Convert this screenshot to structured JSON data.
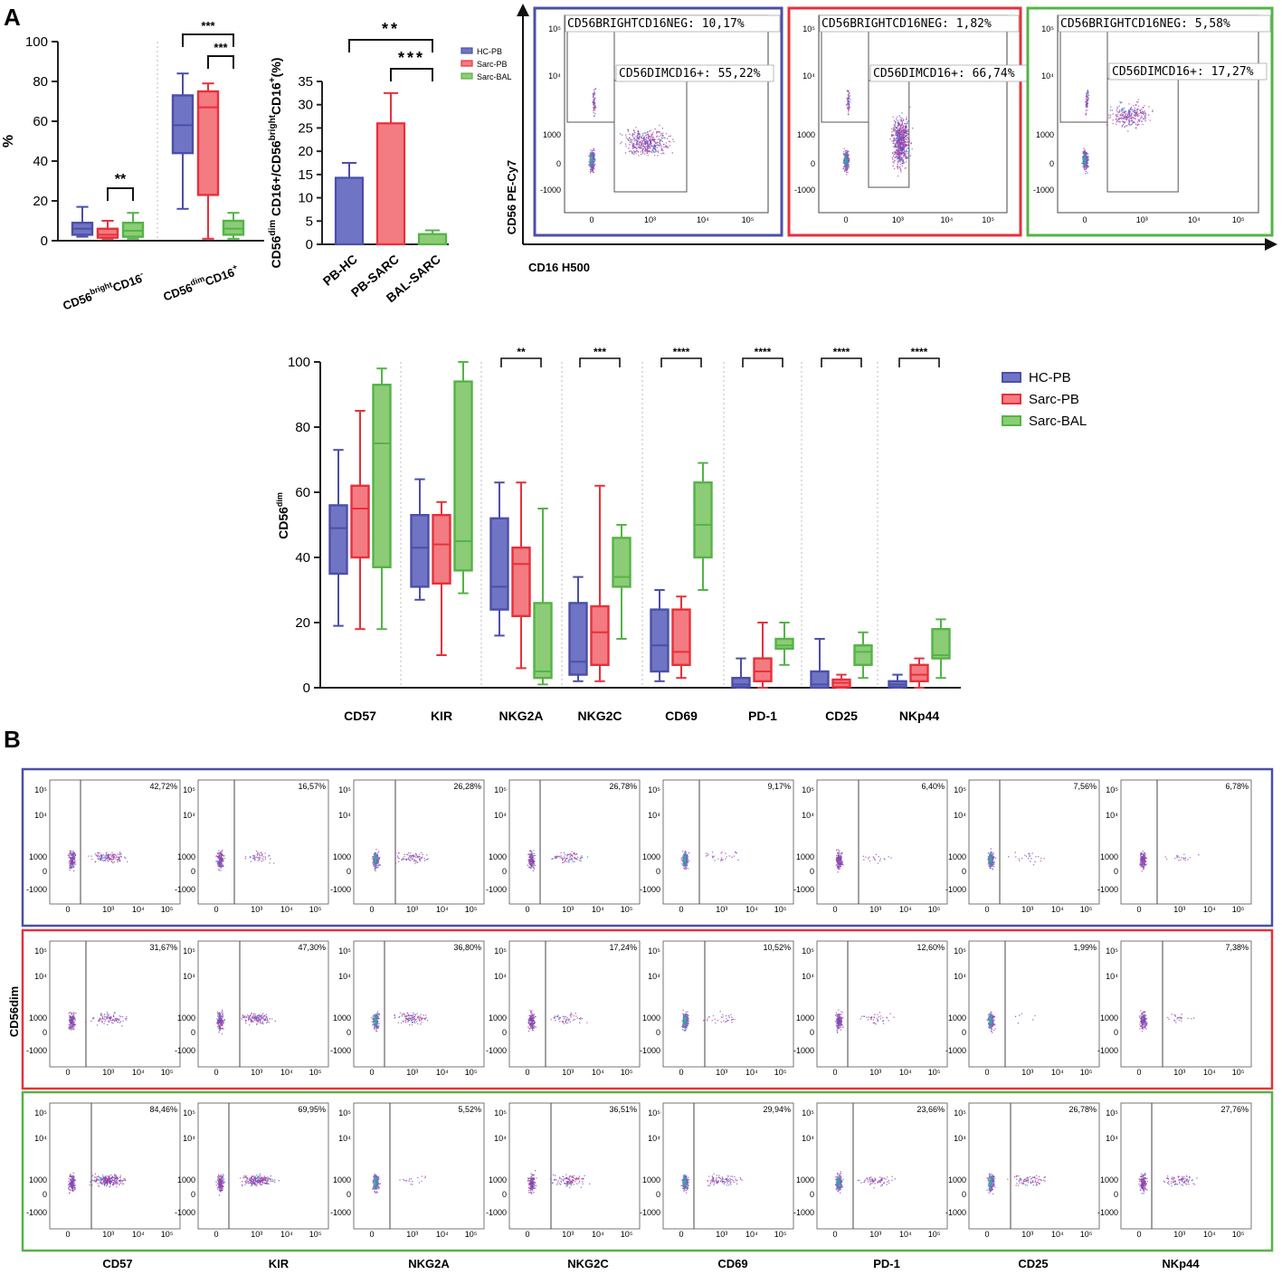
{
  "panels": {
    "a": "A",
    "b": "B"
  },
  "colors": {
    "hc": "#4b4fa8",
    "sarc_pb": "#e8303a",
    "sarc_bal": "#54b447",
    "hc_fill": "#6f74c4",
    "pb_fill": "#f37b82",
    "bal_fill": "#8ccc76"
  },
  "chart_data": [
    {
      "type": "box",
      "id": "subsets",
      "ylabel": "%",
      "ylim": [
        0,
        100
      ],
      "yticks": [
        0,
        20,
        40,
        60,
        80,
        100
      ],
      "categories": [
        "CD56brightCD16-",
        "CD56dimCD16+"
      ],
      "category_labels": [
        {
          "base": "CD56",
          "sup": "bright",
          "rest": "CD16",
          "sup2": "-"
        },
        {
          "base": "CD56",
          "sup": "dim",
          "rest": "CD16",
          "sup2": "+"
        }
      ],
      "series": [
        {
          "name": "HC-PB",
          "boxes": [
            {
              "min": 2,
              "q1": 3,
              "median": 6,
              "q3": 9,
              "max": 17
            },
            {
              "min": 16,
              "q1": 44,
              "median": 58,
              "q3": 73,
              "max": 84
            }
          ]
        },
        {
          "name": "Sarc-PB",
          "boxes": [
            {
              "min": 1,
              "q1": 1.5,
              "median": 3,
              "q3": 6,
              "max": 10
            },
            {
              "min": 1,
              "q1": 23,
              "median": 67,
              "q3": 75,
              "max": 79
            }
          ]
        },
        {
          "name": "Sarc-BAL",
          "boxes": [
            {
              "min": 1,
              "q1": 2,
              "median": 5,
              "q3": 9,
              "max": 14
            },
            {
              "min": 1,
              "q1": 3,
              "median": 6,
              "q3": 10,
              "max": 14
            }
          ]
        }
      ],
      "significance": [
        {
          "category": 0,
          "from": 1,
          "to": 2,
          "label": "**"
        },
        {
          "category": 1,
          "from": 0,
          "to": 2,
          "label": "***"
        },
        {
          "category": 1,
          "from": 1,
          "to": 2,
          "label": "***"
        }
      ]
    },
    {
      "type": "bar",
      "id": "ratio",
      "ylabel_parts": [
        "CD56",
        "dim",
        " CD16+/CD56",
        "bright",
        "CD16",
        "+",
        "(%)"
      ],
      "ylim": [
        0,
        35
      ],
      "yticks": [
        0,
        5,
        10,
        15,
        20,
        25,
        30,
        35
      ],
      "categories": [
        "PB-HC",
        "PB-SARC",
        "BAL-SARC"
      ],
      "values": [
        14.3,
        26,
        2.2
      ],
      "errors": [
        3.2,
        6.5,
        0.8
      ],
      "legend": [
        "HC-PB",
        "Sarc-PB",
        "Sarc-BAL"
      ],
      "significance": [
        {
          "from": 0,
          "to": 2,
          "label": "**"
        },
        {
          "from": 1,
          "to": 2,
          "label": "***"
        }
      ]
    },
    {
      "type": "box",
      "id": "markers",
      "ylabel_parts": [
        "CD56",
        "dim"
      ],
      "ylim": [
        0,
        100
      ],
      "yticks": [
        0,
        20,
        40,
        60,
        80,
        100
      ],
      "categories": [
        "CD57",
        "KIR",
        "NKG2A",
        "NKG2C",
        "CD69",
        "PD-1",
        "CD25",
        "NKp44"
      ],
      "legend": [
        "HC-PB",
        "Sarc-PB",
        "Sarc-BAL"
      ],
      "series": [
        {
          "name": "HC-PB",
          "boxes": [
            {
              "min": 19,
              "q1": 35,
              "median": 49,
              "q3": 56,
              "max": 73
            },
            {
              "min": 27,
              "q1": 31,
              "median": 43,
              "q3": 53,
              "max": 64
            },
            {
              "min": 16,
              "q1": 24,
              "median": 31,
              "q3": 52,
              "max": 63
            },
            {
              "min": 2,
              "q1": 4,
              "median": 8,
              "q3": 26,
              "max": 34
            },
            {
              "min": 2,
              "q1": 5,
              "median": 13,
              "q3": 24,
              "max": 30
            },
            {
              "min": 0,
              "q1": 0.2,
              "median": 1,
              "q3": 3,
              "max": 9
            },
            {
              "min": 0,
              "q1": 0,
              "median": 1,
              "q3": 5,
              "max": 15
            },
            {
              "min": 0,
              "q1": 0.2,
              "median": 1,
              "q3": 2,
              "max": 4
            }
          ]
        },
        {
          "name": "Sarc-PB",
          "boxes": [
            {
              "min": 18,
              "q1": 40,
              "median": 55,
              "q3": 62,
              "max": 85
            },
            {
              "min": 10,
              "q1": 32,
              "median": 44,
              "q3": 53,
              "max": 57
            },
            {
              "min": 6,
              "q1": 22,
              "median": 38,
              "q3": 43,
              "max": 63
            },
            {
              "min": 2,
              "q1": 7,
              "median": 17,
              "q3": 25,
              "max": 62
            },
            {
              "min": 3,
              "q1": 7,
              "median": 11,
              "q3": 24,
              "max": 28
            },
            {
              "min": 0,
              "q1": 2,
              "median": 5,
              "q3": 9,
              "max": 20
            },
            {
              "min": 0,
              "q1": 0.2,
              "median": 1.5,
              "q3": 2.5,
              "max": 4
            },
            {
              "min": 0,
              "q1": 2,
              "median": 4,
              "q3": 7,
              "max": 9
            }
          ]
        },
        {
          "name": "Sarc-BAL",
          "boxes": [
            {
              "min": 18,
              "q1": 37,
              "median": 75,
              "q3": 93,
              "max": 98
            },
            {
              "min": 29,
              "q1": 36,
              "median": 45,
              "q3": 94,
              "max": 100
            },
            {
              "min": 1,
              "q1": 3,
              "median": 5,
              "q3": 26,
              "max": 55
            },
            {
              "min": 15,
              "q1": 31,
              "median": 34,
              "q3": 46,
              "max": 50
            },
            {
              "min": 30,
              "q1": 40,
              "median": 50,
              "q3": 63,
              "max": 69
            },
            {
              "min": 7,
              "q1": 12,
              "median": 13,
              "q3": 15,
              "max": 20
            },
            {
              "min": 3,
              "q1": 7,
              "median": 11,
              "q3": 13,
              "max": 17
            },
            {
              "min": 3,
              "q1": 9,
              "median": 10,
              "q3": 18,
              "max": 21
            }
          ]
        }
      ],
      "significance": [
        {
          "category": 2,
          "label": "**"
        },
        {
          "category": 3,
          "label": "***"
        },
        {
          "category": 4,
          "label": "****"
        },
        {
          "category": 5,
          "label": "****"
        },
        {
          "category": 6,
          "label": "****"
        },
        {
          "category": 7,
          "label": "****"
        }
      ]
    }
  ],
  "flow_a": {
    "y_axis_label": "CD56 PE-Cy7",
    "x_axis_label": "CD16 H500",
    "plots": [
      {
        "group": "HC-PB",
        "bright_label": "CD56BRIGHTCD16NEG: 10,17%",
        "dim_label": "CD56DIMCD16+: 55,22%"
      },
      {
        "group": "Sarc-PB",
        "bright_label": "CD56BRIGHTCD16NEG: 1,82%",
        "dim_label": "CD56DIMCD16+: 66,74%"
      },
      {
        "group": "Sarc-BAL",
        "bright_label": "CD56BRIGHTCD16NEG: 5,58%",
        "dim_label": "CD56DIMCD16+: 17,27%"
      }
    ],
    "y_ticks": [
      "10⁵",
      "10⁴",
      "1000",
      "0",
      "-1000"
    ],
    "x_ticks": [
      "0",
      "10³",
      "10⁴",
      "10⁵"
    ]
  },
  "flow_b": {
    "y_axis_label": "CD56dim",
    "markers": [
      "CD57",
      "KIR",
      "NKG2A",
      "NKG2C",
      "CD69",
      "PD-1",
      "CD25",
      "NKp44"
    ],
    "rows": [
      {
        "group": "HC-PB",
        "percents": [
          "42,72%",
          "16,57%",
          "26,28%",
          "26,78%",
          "9,17%",
          "6,40%",
          "7,56%",
          "6,78%"
        ]
      },
      {
        "group": "Sarc-PB",
        "percents": [
          "31,67%",
          "47,30%",
          "36,80%",
          "17,24%",
          "10,52%",
          "12,60%",
          "1,99%",
          "7,38%"
        ]
      },
      {
        "group": "Sarc-BAL",
        "percents": [
          "84,46%",
          "69,95%",
          "5,52%",
          "36,51%",
          "29,94%",
          "23,66%",
          "26,78%",
          "27,76%"
        ]
      }
    ],
    "y_ticks": [
      "10⁵",
      "10⁴",
      "1000",
      "0",
      "-1000"
    ],
    "x_ticks": [
      "0",
      "10³",
      "10⁴",
      "10⁵"
    ]
  }
}
